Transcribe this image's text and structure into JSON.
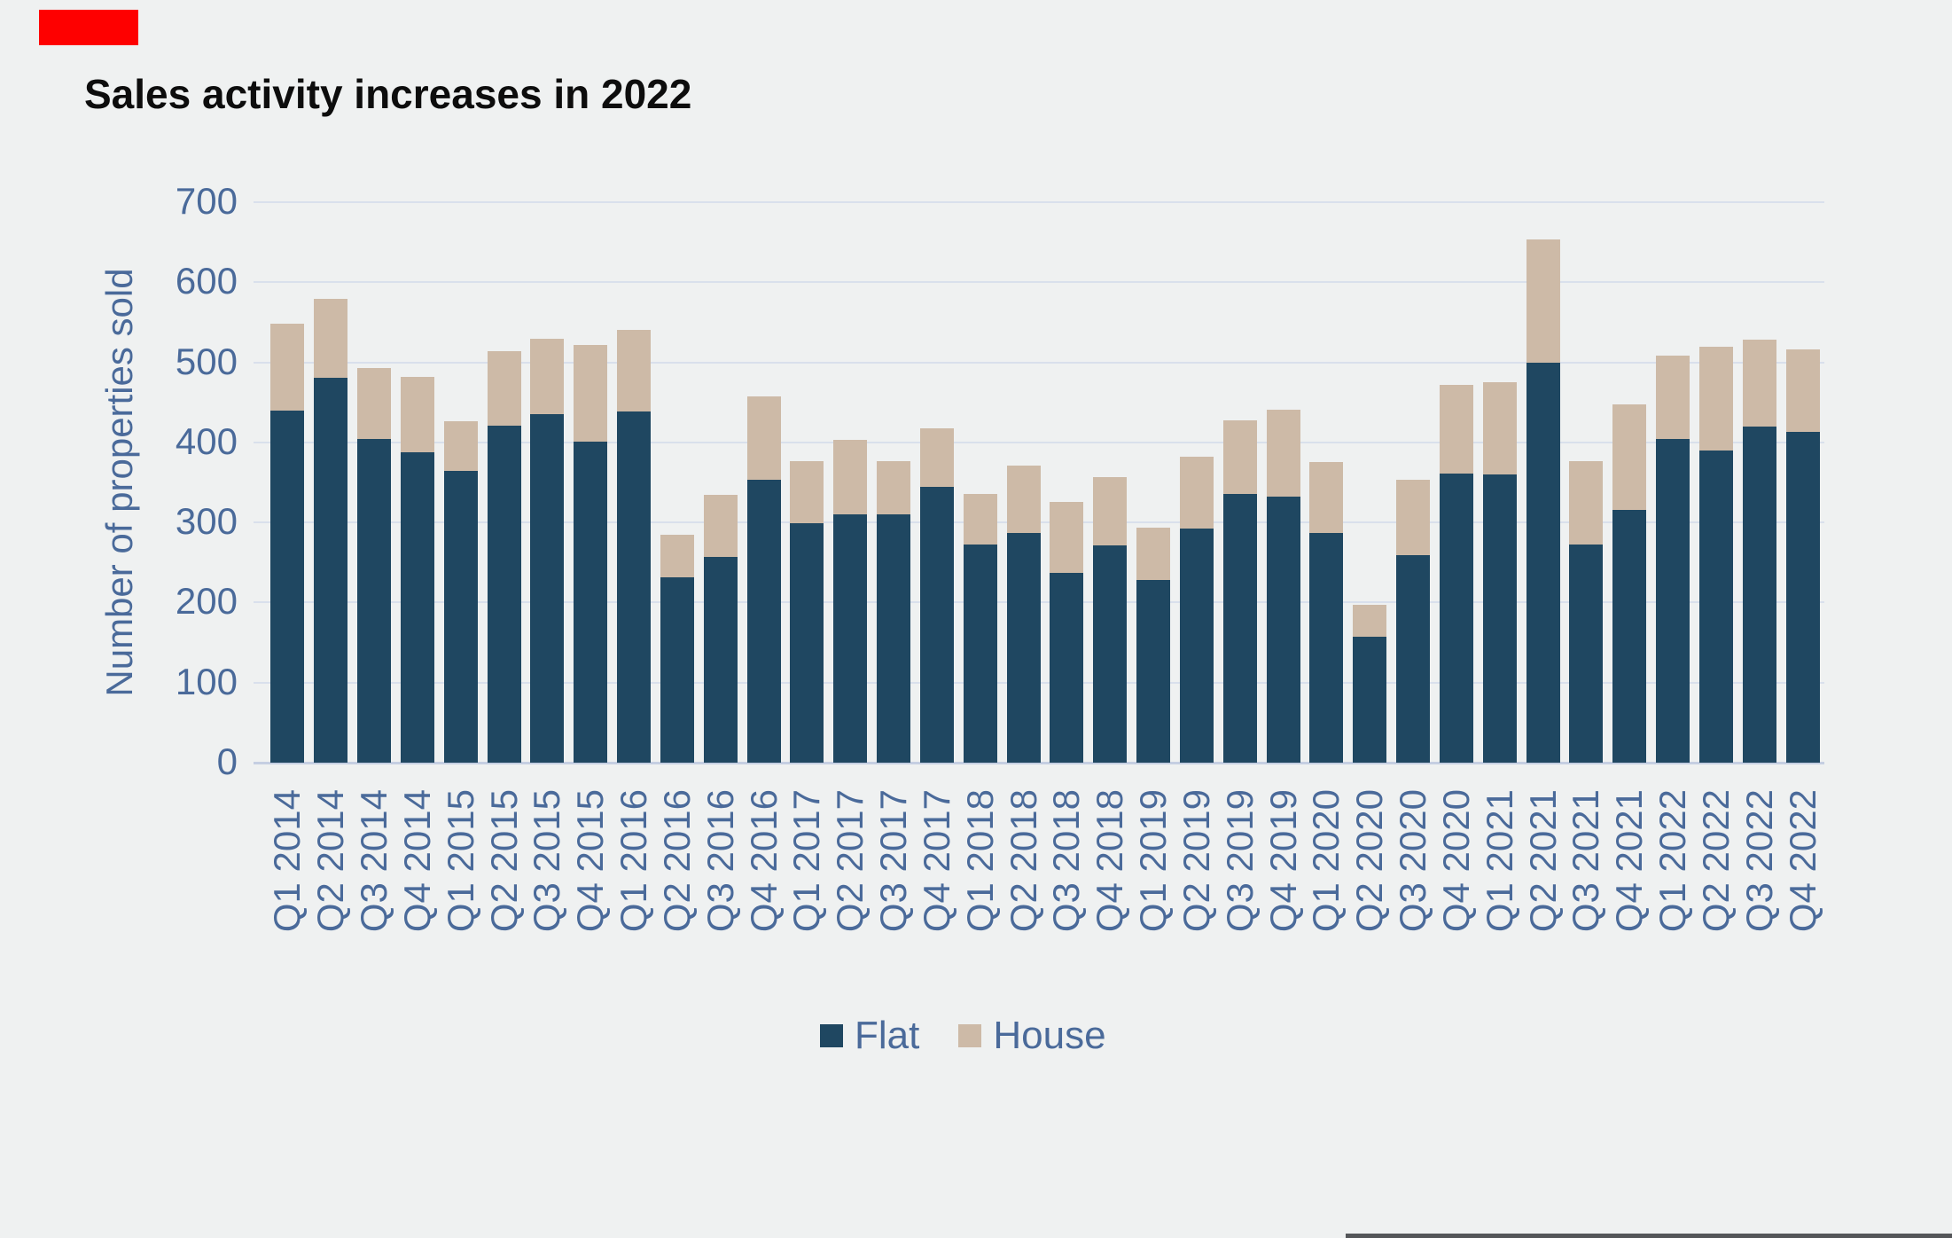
{
  "title": "Sales activity increases in 2022",
  "red_marker": {
    "color": "#fe0000"
  },
  "footer_strip": {
    "color": "#545659"
  },
  "y_axis": {
    "title": "Number of properties sold",
    "ticks": [
      700,
      600,
      500,
      400,
      300,
      200,
      100,
      0
    ]
  },
  "legend": {
    "items": [
      {
        "label": "Flat",
        "color": "#1f4761"
      },
      {
        "label": "House",
        "color": "#cdbaa7"
      }
    ]
  },
  "colors": {
    "background": "#eff1f1",
    "axis_text": "#4a6a9a",
    "gridline": "#d9e0ec",
    "title_text": "#0d0d0d"
  },
  "chart_data": {
    "type": "bar",
    "stacked": true,
    "title": "Sales activity increases in 2022",
    "xlabel": "",
    "ylabel": "Number of properties sold",
    "ylim": [
      0,
      700
    ],
    "grid": true,
    "legend_position": "bottom",
    "categories": [
      "Q1 2014",
      "Q2 2014",
      "Q3 2014",
      "Q4 2014",
      "Q1 2015",
      "Q2 2015",
      "Q3 2015",
      "Q4 2015",
      "Q1 2016",
      "Q2 2016",
      "Q3 2016",
      "Q4 2016",
      "Q1 2017",
      "Q2 2017",
      "Q3 2017",
      "Q4 2017",
      "Q1 2018",
      "Q2 2018",
      "Q3 2018",
      "Q4 2018",
      "Q1 2019",
      "Q2 2019",
      "Q3 2019",
      "Q4 2019",
      "Q1 2020",
      "Q2 2020",
      "Q3 2020",
      "Q4 2020",
      "Q1 2021",
      "Q2 2021",
      "Q3 2021",
      "Q4 2021",
      "Q1 2022",
      "Q2 2022",
      "Q3 2022",
      "Q4 2022"
    ],
    "series": [
      {
        "name": "Flat",
        "color": "#1f4761",
        "values": [
          440,
          481,
          404,
          388,
          364,
          421,
          435,
          401,
          439,
          232,
          257,
          353,
          299,
          310,
          310,
          344,
          272,
          287,
          237,
          271,
          228,
          292,
          336,
          332,
          287,
          157,
          259,
          361,
          360,
          499,
          272,
          316,
          404,
          390,
          420,
          413
        ]
      },
      {
        "name": "House",
        "color": "#cdbaa7",
        "values": [
          108,
          98,
          89,
          94,
          62,
          93,
          94,
          121,
          101,
          53,
          77,
          104,
          78,
          93,
          67,
          74,
          64,
          84,
          89,
          86,
          65,
          90,
          91,
          109,
          89,
          40,
          94,
          111,
          115,
          155,
          105,
          132,
          104,
          130,
          108,
          103
        ]
      }
    ]
  }
}
